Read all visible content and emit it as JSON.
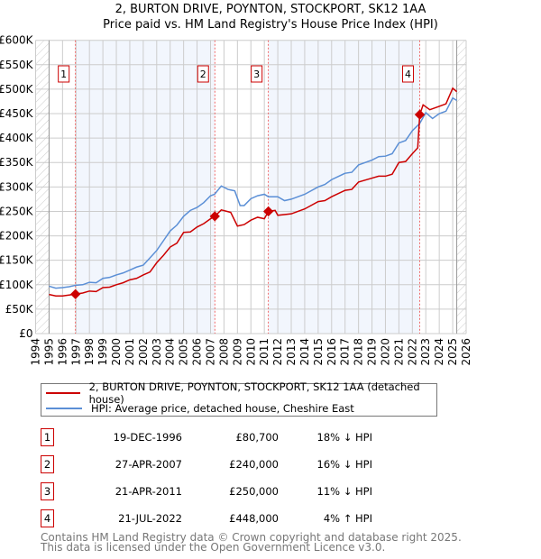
{
  "title": "2, BURTON DRIVE, POYNTON, STOCKPORT, SK12 1AA",
  "subtitle": "Price paid vs. HM Land Registry's House Price Index (HPI)",
  "legend": [
    {
      "label": "2, BURTON DRIVE, POYNTON, STOCKPORT, SK12 1AA (detached house)",
      "color": "#cc0000"
    },
    {
      "label": "HPI: Average price, detached house, Cheshire East",
      "color": "#5b8fd6"
    }
  ],
  "sales": [
    {
      "n": "1",
      "date": "19-DEC-1996",
      "price": "£80,700",
      "hpi": "18% ↓ HPI"
    },
    {
      "n": "2",
      "date": "27-APR-2007",
      "price": "£240,000",
      "hpi": "16% ↓ HPI"
    },
    {
      "n": "3",
      "date": "21-APR-2011",
      "price": "£250,000",
      "hpi": "11% ↓ HPI"
    },
    {
      "n": "4",
      "date": "21-JUL-2022",
      "price": "£448,000",
      "hpi": "4% ↑ HPI"
    }
  ],
  "footer": [
    "Contains HM Land Registry data © Crown copyright and database right 2025.",
    "This data is licensed under the Open Government Licence v3.0."
  ],
  "chart_data": {
    "type": "line",
    "xlim": [
      1994,
      2026
    ],
    "ylim": [
      0,
      600000
    ],
    "yticks": [
      0,
      50000,
      100000,
      150000,
      200000,
      250000,
      300000,
      350000,
      400000,
      450000,
      500000,
      550000,
      600000
    ],
    "ytick_labels": [
      "£0",
      "£50K",
      "£100K",
      "£150K",
      "£200K",
      "£250K",
      "£300K",
      "£350K",
      "£400K",
      "£450K",
      "£500K",
      "£550K",
      "£600K"
    ],
    "xticks": [
      "1994",
      "1995",
      "1996",
      "1997",
      "1998",
      "1999",
      "2000",
      "2001",
      "2002",
      "2003",
      "2004",
      "2005",
      "2006",
      "2007",
      "2008",
      "2009",
      "2010",
      "2011",
      "2012",
      "2013",
      "2014",
      "2015",
      "2016",
      "2017",
      "2018",
      "2019",
      "2020",
      "2021",
      "2022",
      "2023",
      "2024",
      "2025",
      "2026"
    ],
    "data_end": 2025.3,
    "markers": [
      {
        "label": "1",
        "x": 1996.96,
        "y": 80700
      },
      {
        "label": "2",
        "x": 2007.32,
        "y": 240000
      },
      {
        "label": "3",
        "x": 2011.3,
        "y": 250000
      },
      {
        "label": "4",
        "x": 2022.55,
        "y": 448000
      }
    ],
    "series": [
      {
        "name": "HPI",
        "color": "#5b8fd6",
        "points": [
          [
            1995,
            97
          ],
          [
            1995.5,
            93
          ],
          [
            1996,
            94
          ],
          [
            1996.5,
            96
          ],
          [
            1997,
            99
          ],
          [
            1997.5,
            100
          ],
          [
            1998,
            105
          ],
          [
            1998.5,
            104
          ],
          [
            1999,
            113
          ],
          [
            1999.5,
            115
          ],
          [
            2000,
            120
          ],
          [
            2000.5,
            124
          ],
          [
            2001,
            130
          ],
          [
            2001.5,
            136
          ],
          [
            2002,
            140
          ],
          [
            2002.5,
            155
          ],
          [
            2003,
            170
          ],
          [
            2003.5,
            190
          ],
          [
            2004,
            210
          ],
          [
            2004.5,
            222
          ],
          [
            2005,
            240
          ],
          [
            2005.5,
            252
          ],
          [
            2006,
            258
          ],
          [
            2006.5,
            268
          ],
          [
            2007,
            282
          ],
          [
            2007.3,
            285
          ],
          [
            2007.8,
            302
          ],
          [
            2008.3,
            295
          ],
          [
            2008.8,
            292
          ],
          [
            2009.2,
            262
          ],
          [
            2009.5,
            262
          ],
          [
            2010,
            276
          ],
          [
            2010.5,
            282
          ],
          [
            2011,
            285
          ],
          [
            2011.3,
            280
          ],
          [
            2012,
            280
          ],
          [
            2012.5,
            272
          ],
          [
            2013,
            275
          ],
          [
            2014,
            285
          ],
          [
            2015,
            300
          ],
          [
            2015.5,
            305
          ],
          [
            2016,
            315
          ],
          [
            2017,
            328
          ],
          [
            2017.5,
            330
          ],
          [
            2018,
            345
          ],
          [
            2019,
            355
          ],
          [
            2019.5,
            362
          ],
          [
            2020,
            363
          ],
          [
            2020.5,
            368
          ],
          [
            2021,
            390
          ],
          [
            2021.5,
            395
          ],
          [
            2022,
            415
          ],
          [
            2022.55,
            430
          ],
          [
            2023,
            452
          ],
          [
            2023.5,
            440
          ],
          [
            2024,
            450
          ],
          [
            2024.5,
            455
          ],
          [
            2025,
            482
          ],
          [
            2025.3,
            477
          ]
        ]
      },
      {
        "name": "Price paid",
        "color": "#cc0000",
        "points": [
          [
            1995,
            80
          ],
          [
            1995.5,
            77
          ],
          [
            1996,
            77
          ],
          [
            1996.96,
            80.7
          ],
          [
            1997.5,
            83
          ],
          [
            1998,
            87
          ],
          [
            1998.5,
            86
          ],
          [
            1999,
            94
          ],
          [
            1999.5,
            95
          ],
          [
            2000,
            100
          ],
          [
            2000.5,
            104
          ],
          [
            2001,
            110
          ],
          [
            2001.5,
            113
          ],
          [
            2002,
            120
          ],
          [
            2002.5,
            126
          ],
          [
            2003,
            145
          ],
          [
            2003.5,
            160
          ],
          [
            2004,
            177
          ],
          [
            2004.5,
            185
          ],
          [
            2005,
            207
          ],
          [
            2005.5,
            208
          ],
          [
            2006,
            218
          ],
          [
            2006.5,
            225
          ],
          [
            2007,
            235
          ],
          [
            2007.32,
            240
          ],
          [
            2007.8,
            253
          ],
          [
            2008.5,
            248
          ],
          [
            2009,
            220
          ],
          [
            2009.5,
            223
          ],
          [
            2010,
            232
          ],
          [
            2010.5,
            238
          ],
          [
            2011,
            235
          ],
          [
            2011.3,
            250
          ],
          [
            2011.8,
            252
          ],
          [
            2012,
            242
          ],
          [
            2013,
            245
          ],
          [
            2014,
            255
          ],
          [
            2015,
            270
          ],
          [
            2015.5,
            272
          ],
          [
            2016,
            280
          ],
          [
            2017,
            293
          ],
          [
            2017.5,
            295
          ],
          [
            2018,
            310
          ],
          [
            2019,
            318
          ],
          [
            2019.5,
            322
          ],
          [
            2020,
            322
          ],
          [
            2020.5,
            326
          ],
          [
            2021,
            350
          ],
          [
            2021.5,
            352
          ],
          [
            2022,
            368
          ],
          [
            2022.4,
            380
          ],
          [
            2022.55,
            448
          ],
          [
            2022.8,
            468
          ],
          [
            2023.3,
            458
          ],
          [
            2024,
            465
          ],
          [
            2024.5,
            470
          ],
          [
            2025,
            502
          ],
          [
            2025.3,
            495
          ]
        ]
      }
    ]
  }
}
